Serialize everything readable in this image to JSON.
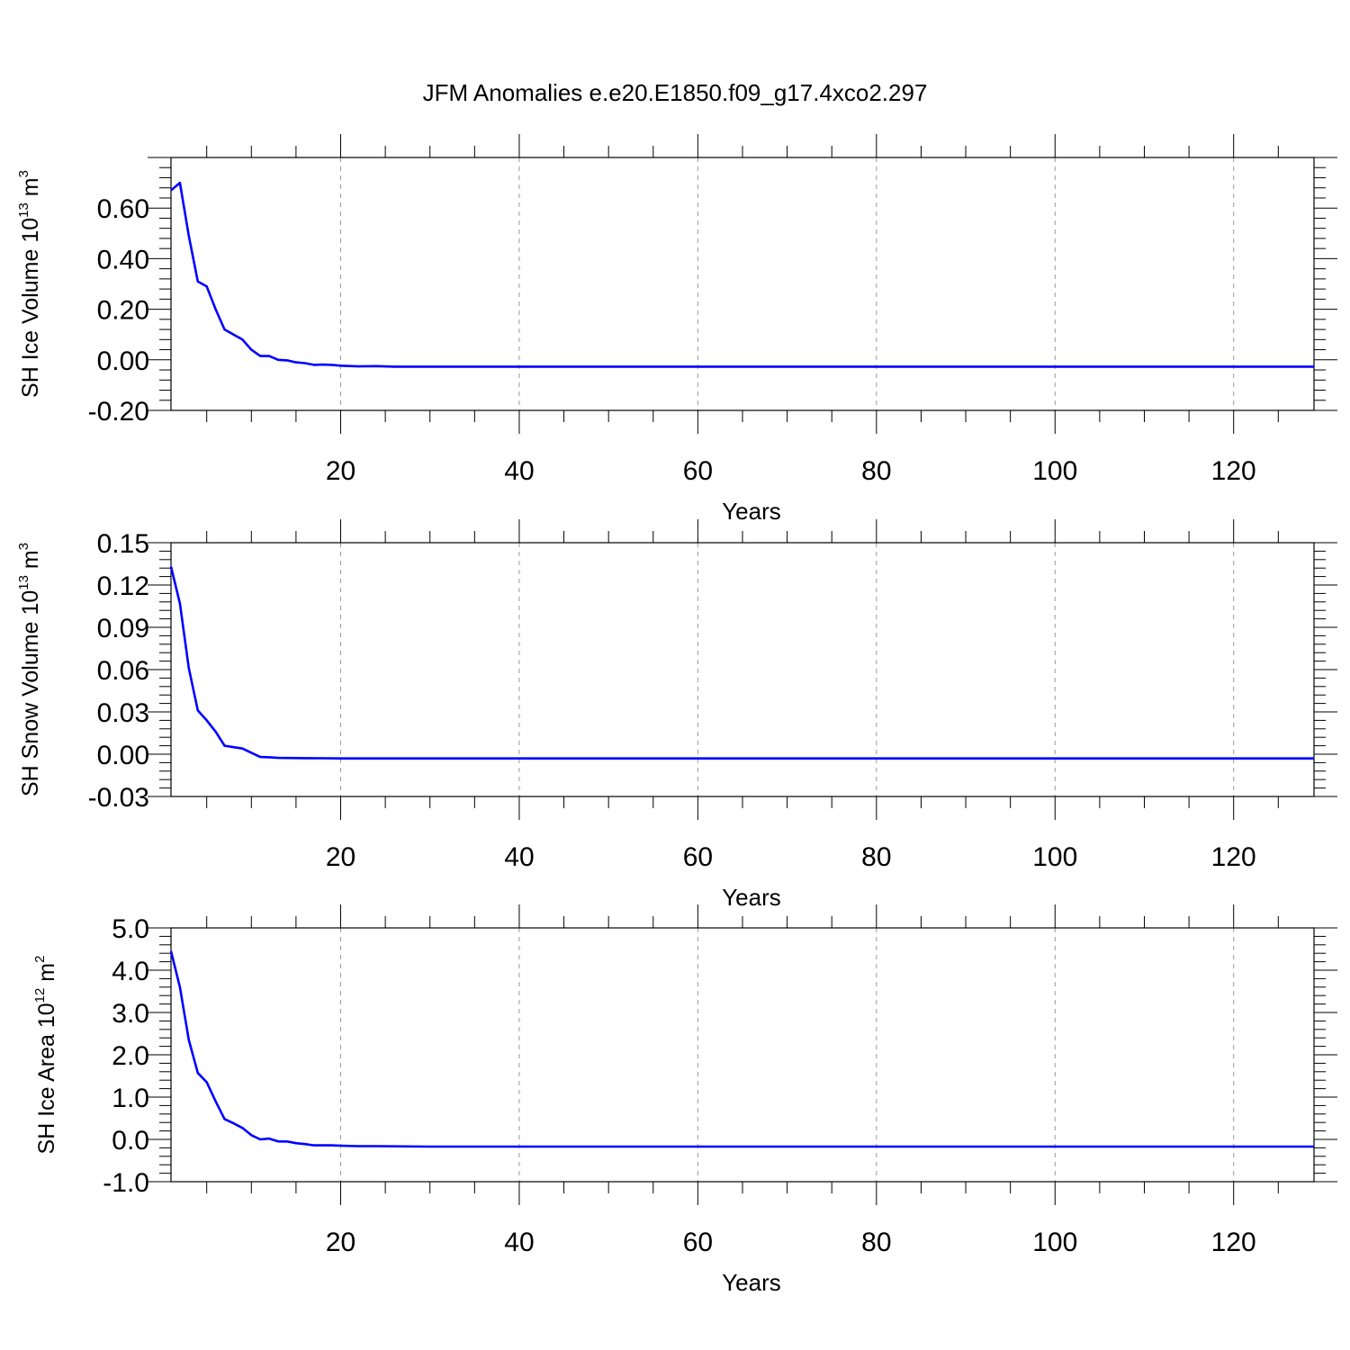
{
  "title": "JFM Anomalies e.e20.E1850.f09_g17.4xco2.297",
  "line_color": "#0000ff",
  "grid_color": "#999999",
  "chart_data": [
    {
      "type": "line",
      "ylabel_parts": [
        "SH Ice Volume 10",
        "13",
        " m",
        "3"
      ],
      "xlabel": "Years",
      "xlim": [
        1,
        129
      ],
      "ylim": [
        -0.2,
        0.8
      ],
      "yticks": [
        -0.2,
        0.0,
        0.2,
        0.4,
        0.6
      ],
      "ytick_labels": [
        "-0.20",
        "0.00",
        "0.20",
        "0.40",
        "0.60"
      ],
      "xticks": [
        20,
        40,
        60,
        80,
        100,
        120
      ],
      "xtick_labels": [
        "20",
        "40",
        "60",
        "80",
        "100",
        "120"
      ],
      "grid": "vertical dashed at major x ticks",
      "series": [
        {
          "x": [
            1,
            2,
            3,
            4,
            5,
            6,
            7,
            8,
            9,
            10,
            11,
            12,
            13,
            14,
            15,
            16,
            17,
            18,
            19,
            20,
            22,
            24,
            26,
            30,
            40,
            50,
            60,
            80,
            100,
            120,
            129
          ],
          "values": [
            0.67,
            0.7,
            0.49,
            0.31,
            0.29,
            0.2,
            0.12,
            0.1,
            0.08,
            0.04,
            0.015,
            0.015,
            0.0,
            -0.002,
            -0.01,
            -0.013,
            -0.02,
            -0.019,
            -0.02,
            -0.023,
            -0.026,
            -0.025,
            -0.027,
            -0.027,
            -0.027,
            -0.027,
            -0.027,
            -0.027,
            -0.027,
            -0.027,
            -0.027
          ]
        }
      ]
    },
    {
      "type": "line",
      "ylabel_parts": [
        "SH Snow Volume 10",
        "13",
        " m",
        "3"
      ],
      "xlabel": "Years",
      "xlim": [
        1,
        129
      ],
      "ylim": [
        -0.03,
        0.15
      ],
      "yticks": [
        -0.03,
        0.0,
        0.03,
        0.06,
        0.09,
        0.12,
        0.15
      ],
      "ytick_labels": [
        "-0.03",
        "0.00",
        "0.03",
        "0.06",
        "0.09",
        "0.12",
        "0.15"
      ],
      "xticks": [
        20,
        40,
        60,
        80,
        100,
        120
      ],
      "xtick_labels": [
        "20",
        "40",
        "60",
        "80",
        "100",
        "120"
      ],
      "grid": "vertical dashed at major x ticks",
      "series": [
        {
          "x": [
            1,
            2,
            3,
            4,
            5,
            6,
            7,
            8,
            9,
            10,
            11,
            12,
            13,
            14,
            16,
            18,
            20,
            30,
            50,
            80,
            129
          ],
          "values": [
            0.133,
            0.107,
            0.061,
            0.031,
            0.024,
            0.016,
            0.006,
            0.005,
            0.004,
            0.001,
            -0.002,
            -0.0022,
            -0.0026,
            -0.0027,
            -0.0028,
            -0.0029,
            -0.003,
            -0.003,
            -0.003,
            -0.003,
            -0.003
          ]
        }
      ]
    },
    {
      "type": "line",
      "ylabel_parts": [
        "SH Ice Area 10",
        "12",
        " m",
        "2"
      ],
      "xlabel": "Years",
      "xlim": [
        1,
        129
      ],
      "ylim": [
        -1.0,
        5.0
      ],
      "yticks": [
        -1.0,
        0.0,
        1.0,
        2.0,
        3.0,
        4.0,
        5.0
      ],
      "ytick_labels": [
        "-1.0",
        "0.0",
        "1.0",
        "2.0",
        "3.0",
        "4.0",
        "5.0"
      ],
      "xticks": [
        20,
        40,
        60,
        80,
        100,
        120
      ],
      "xtick_labels": [
        "20",
        "40",
        "60",
        "80",
        "100",
        "120"
      ],
      "grid": "vertical dashed at major x ticks",
      "series": [
        {
          "x": [
            1,
            2,
            3,
            4,
            5,
            6,
            7,
            8,
            9,
            10,
            11,
            12,
            13,
            14,
            15,
            16,
            17,
            18,
            19,
            20,
            22,
            24,
            30,
            40,
            60,
            80,
            100,
            129
          ],
          "values": [
            4.45,
            3.6,
            2.35,
            1.57,
            1.35,
            0.9,
            0.48,
            0.38,
            0.27,
            0.1,
            0.0,
            0.02,
            -0.05,
            -0.05,
            -0.09,
            -0.11,
            -0.14,
            -0.14,
            -0.14,
            -0.15,
            -0.16,
            -0.16,
            -0.17,
            -0.17,
            -0.17,
            -0.17,
            -0.17,
            -0.17
          ]
        }
      ]
    }
  ]
}
